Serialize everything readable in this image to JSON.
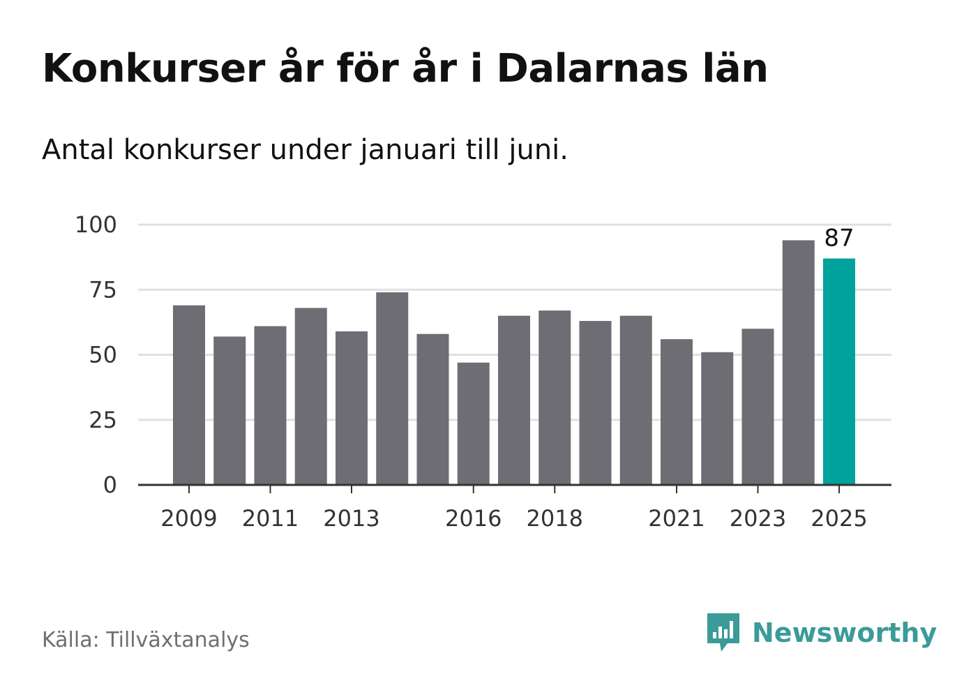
{
  "title": "Konkurser år för år i Dalarnas län",
  "subtitle": "Antal konkurser under januari till juni.",
  "source": "Källa: Tillväxtanalys",
  "brand": {
    "name": "Newsworthy",
    "icon": "newsworthy-logo-icon",
    "color": "#3b9b98"
  },
  "colors": {
    "bar": "#6e6d74",
    "highlight": "#00a39b",
    "grid": "#e0e0e0",
    "axis": "#333333",
    "text": "#333333"
  },
  "chart_data": {
    "type": "bar",
    "categories": [
      "2009",
      "2010",
      "2011",
      "2012",
      "2013",
      "2014",
      "2015",
      "2016",
      "2017",
      "2018",
      "2019",
      "2020",
      "2021",
      "2022",
      "2023",
      "2024",
      "2025"
    ],
    "values": [
      69,
      57,
      61,
      68,
      59,
      74,
      58,
      47,
      65,
      67,
      63,
      65,
      56,
      51,
      60,
      94,
      87
    ],
    "highlight_index": 16,
    "highlight_label": "87",
    "x_tick_labels": [
      "2009",
      "2011",
      "2013",
      "2016",
      "2018",
      "2021",
      "2023",
      "2025"
    ],
    "y_ticks": [
      "0",
      "25",
      "50",
      "75",
      "100"
    ],
    "ylim": [
      0,
      100
    ],
    "grid": true
  }
}
